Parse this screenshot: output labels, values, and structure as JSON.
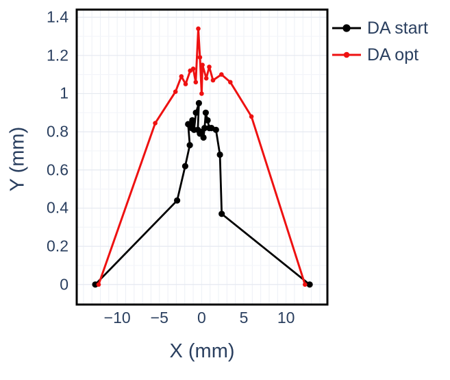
{
  "figure": {
    "background": "#ffffff",
    "text_color": "#2a3f5f"
  },
  "chart_data": {
    "type": "line",
    "title": "",
    "xlabel": "X (mm)",
    "ylabel": "Y (mm)",
    "xlim": [
      -14.8,
      14.9
    ],
    "ylim": [
      -0.105,
      1.44
    ],
    "x_ticks": {
      "values": [
        -10,
        -5,
        0,
        5,
        10
      ],
      "labels": [
        "−10",
        "−5",
        "0",
        "5",
        "10"
      ]
    },
    "y_ticks": {
      "values": [
        0,
        0.2,
        0.4,
        0.6,
        0.8,
        1,
        1.2,
        1.4
      ],
      "labels": [
        "0",
        "0.2",
        "0.4",
        "0.6",
        "0.8",
        "1",
        "1.2",
        "1.4"
      ]
    },
    "grid": {
      "vertical_minor_step": 1,
      "horizontal_major_step": 0.2,
      "horizontal_minor_step": 0.1,
      "vertical_color": "#edf0f6",
      "horizontal_major_color": "#e5e9f0",
      "horizontal_minor_color": "#f3f5f9"
    },
    "frame_color": "#000000",
    "legend_position": "top-right-outside",
    "series": [
      {
        "name": "DA start",
        "color": "#000000",
        "marker": "circle",
        "marker_size": 4.6,
        "line_width": 2.8,
        "points": [
          [
            -12.6,
            0.0
          ],
          [
            -2.9,
            0.44
          ],
          [
            -1.95,
            0.62
          ],
          [
            -1.4,
            0.73
          ],
          [
            -1.6,
            0.84
          ],
          [
            -1.2,
            0.82
          ],
          [
            -1.1,
            0.86
          ],
          [
            -0.9,
            0.81
          ],
          [
            -0.67,
            0.9
          ],
          [
            -0.32,
            0.95
          ],
          [
            -0.45,
            0.81
          ],
          [
            -0.2,
            0.79
          ],
          [
            0.0,
            0.8
          ],
          [
            0.22,
            0.77
          ],
          [
            0.35,
            0.82
          ],
          [
            0.49,
            0.9
          ],
          [
            0.71,
            0.86
          ],
          [
            0.9,
            0.82
          ],
          [
            1.16,
            0.82
          ],
          [
            1.7,
            0.81
          ],
          [
            2.17,
            0.68
          ],
          [
            2.38,
            0.37
          ],
          [
            12.8,
            0.0
          ]
        ]
      },
      {
        "name": "DA opt",
        "color": "#ee1111",
        "marker": "circle",
        "marker_size": 3.3,
        "line_width": 3.0,
        "points": [
          [
            -12.2,
            0.0
          ],
          [
            -5.5,
            0.845
          ],
          [
            -3.1,
            1.01
          ],
          [
            -2.4,
            1.09
          ],
          [
            -1.9,
            1.05
          ],
          [
            -1.35,
            1.12
          ],
          [
            -1.0,
            1.13
          ],
          [
            -0.7,
            1.06
          ],
          [
            -0.4,
            1.34
          ],
          [
            -0.2,
            1.19
          ],
          [
            0.0,
            1.0
          ],
          [
            0.1,
            1.15
          ],
          [
            0.55,
            1.08
          ],
          [
            0.9,
            1.14
          ],
          [
            1.35,
            1.07
          ],
          [
            2.35,
            1.1
          ],
          [
            3.4,
            1.06
          ],
          [
            5.9,
            0.88
          ],
          [
            12.25,
            0.0
          ]
        ]
      }
    ]
  }
}
